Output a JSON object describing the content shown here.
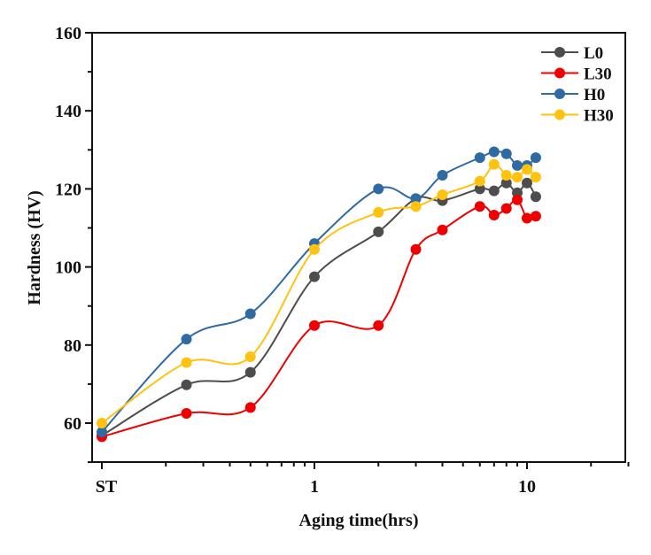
{
  "chart_data": {
    "type": "line",
    "title": "",
    "xlabel": "Aging time(hrs)",
    "ylabel": "Hardness (HV)",
    "xscale": "log",
    "xlim": [
      0.1,
      30
    ],
    "ylim": [
      50,
      160
    ],
    "grid": false,
    "legend_position": "top-right",
    "x_ticks": [
      {
        "value": 0.1,
        "label": "ST"
      },
      {
        "value": 1,
        "label": "1"
      },
      {
        "value": 10,
        "label": "10"
      }
    ],
    "y_ticks": [
      60,
      80,
      100,
      120,
      140,
      160
    ],
    "x": [
      0.1,
      0.25,
      0.5,
      1,
      2,
      3,
      4,
      6,
      7,
      8,
      9,
      10,
      11
    ],
    "series": [
      {
        "name": "L0",
        "color": "#4d4d4d",
        "values": [
          56.8,
          69.8,
          73,
          97.5,
          109,
          117.5,
          117,
          120,
          119.5,
          121.5,
          119,
          121.5,
          118
        ]
      },
      {
        "name": "L30",
        "color": "#ee0000",
        "values": [
          56.5,
          62.5,
          64,
          85,
          85,
          104.5,
          109.5,
          115.5,
          113.3,
          115,
          117.2,
          112.5,
          113
        ]
      },
      {
        "name": "H0",
        "color": "#2f6aa3",
        "values": [
          57.7,
          81.5,
          88,
          106,
          120,
          117.5,
          123.5,
          128,
          129.5,
          129,
          126,
          126,
          128
        ]
      },
      {
        "name": "H30",
        "color": "#ffc20e",
        "values": [
          60,
          75.5,
          77,
          104.5,
          114,
          115.5,
          118.5,
          122,
          126.3,
          123.5,
          123,
          125,
          123
        ]
      }
    ]
  }
}
